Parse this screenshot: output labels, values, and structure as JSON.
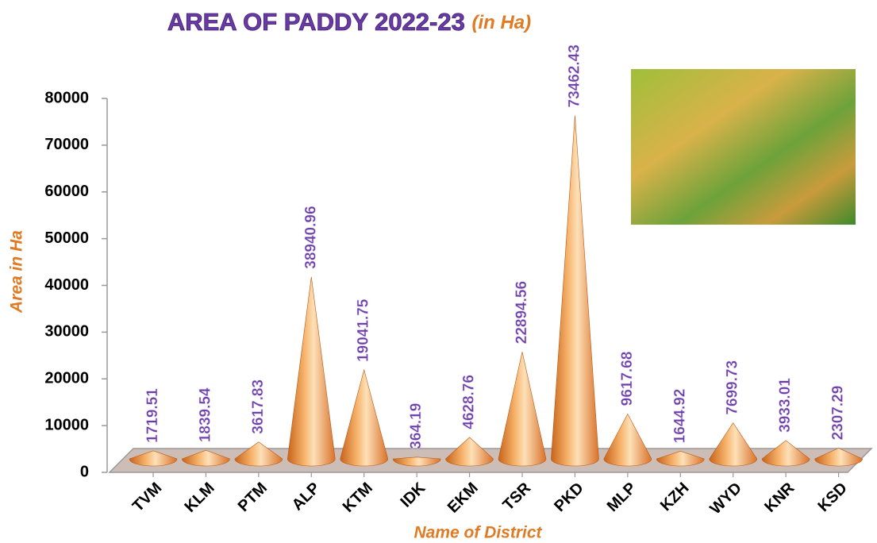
{
  "chart_data": {
    "type": "cone",
    "title": "AREA OF PADDY 2022-23",
    "subtitle": "(in Ha)",
    "y_label": "Area in Ha",
    "x_label": "Name of District",
    "categories": [
      "TVM",
      "KLM",
      "PTM",
      "ALP",
      "KTM",
      "IDK",
      "EKM",
      "TSR",
      "PKD",
      "MLP",
      "KZH",
      "WYD",
      "KNR",
      "KSD"
    ],
    "values": [
      1719.51,
      1839.54,
      3617.83,
      38940.96,
      19041.75,
      364.19,
      4628.76,
      22894.56,
      73462.43,
      9617.68,
      1644.92,
      7699.73,
      3933.01,
      2307.29
    ],
    "color": "#f0a050",
    "ylim": [
      0,
      80000
    ],
    "yticks": [
      0,
      10000,
      20000,
      30000,
      40000,
      50000,
      60000,
      70000,
      80000
    ]
  }
}
